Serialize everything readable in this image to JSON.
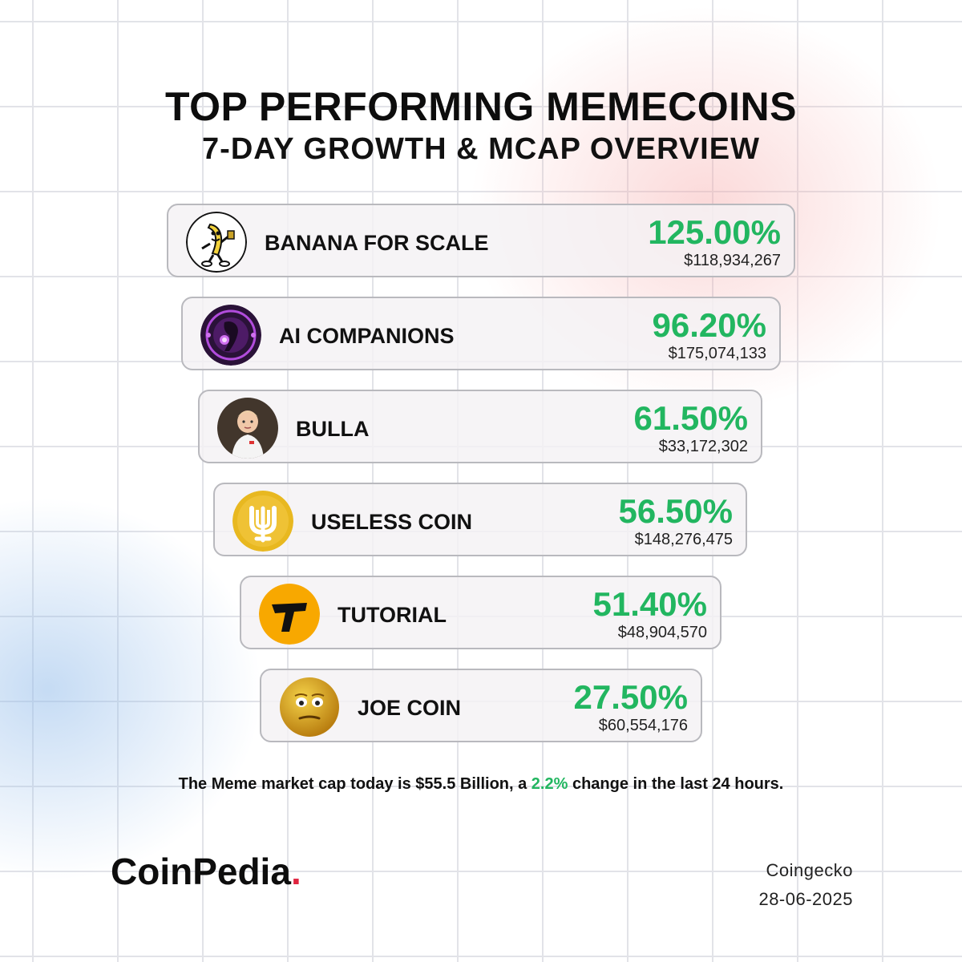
{
  "header": {
    "title": "TOP PERFORMING MEMECOINS",
    "subtitle": "7-DAY GROWTH & MCAP OVERVIEW"
  },
  "coins": [
    {
      "name": "BANANA FOR SCALE",
      "change": "125.00%",
      "mcap": "$118,934,267",
      "icon": "banana-mascot-icon"
    },
    {
      "name": "AI COMPANIONS",
      "change": "96.20%",
      "mcap": "$175,074,133",
      "icon": "ai-companion-icon"
    },
    {
      "name": "BULLA",
      "change": "61.50%",
      "mcap": "$33,172,302",
      "icon": "bulla-child-photo-icon"
    },
    {
      "name": "USELESS COIN",
      "change": "56.50%",
      "mcap": "$148,276,475",
      "icon": "useless-coin-icon"
    },
    {
      "name": "TUTORIAL",
      "change": "51.40%",
      "mcap": "$48,904,570",
      "icon": "tutorial-t-icon"
    },
    {
      "name": "JOE COIN",
      "change": "27.50%",
      "mcap": "$60,554,176",
      "icon": "joe-face-icon"
    }
  ],
  "summary": {
    "prefix": "The Meme market cap today is $55.5 Billion, a ",
    "highlight": "2.2%",
    "suffix": " change in the last 24 hours."
  },
  "footer": {
    "brand_main": "CoinPedia",
    "brand_dot": ".",
    "source": "Coingecko",
    "date": "28-06-2025"
  },
  "colors": {
    "positive": "#22b660",
    "brand_accent": "#e0243f"
  }
}
